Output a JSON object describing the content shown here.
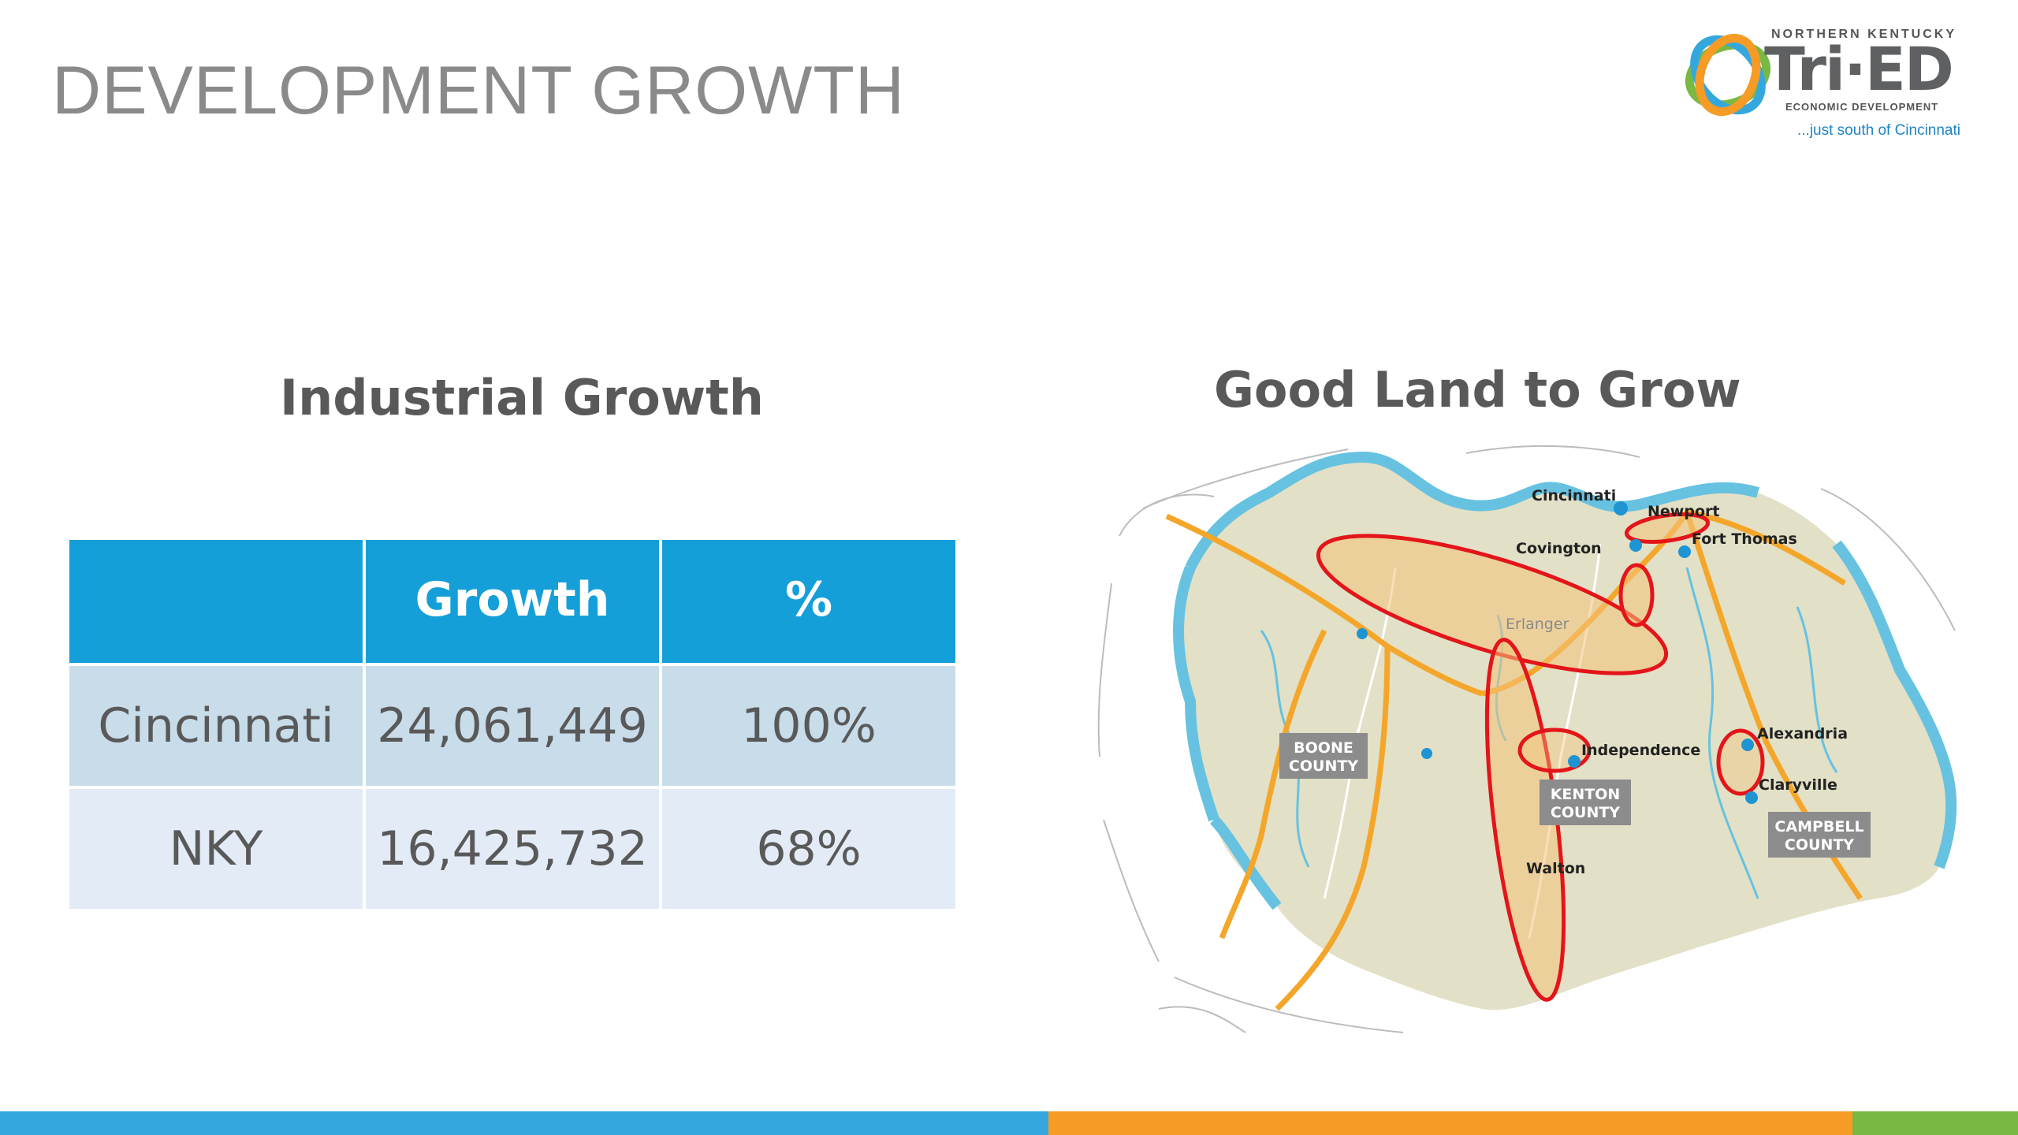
{
  "slide": {
    "title": "DEVELOPMENT GROWTH"
  },
  "logo": {
    "top_line": "NORTHERN KENTUCKY",
    "name": "Tri·ED",
    "subtitle": "ECONOMIC DEVELOPMENT",
    "tagline": "...just south of Cincinnati",
    "icon": "tri-ring-logo-icon"
  },
  "industrial_growth": {
    "heading": "Industrial Growth",
    "columns": [
      "",
      "Growth",
      "%"
    ],
    "rows": [
      {
        "region": "Cincinnati",
        "growth": "24,061,449",
        "percent": "100%"
      },
      {
        "region": "NKY",
        "growth": "16,425,732",
        "percent": "68%"
      }
    ]
  },
  "land_map": {
    "heading": "Good Land to Grow",
    "cities": {
      "cincinnati": "Cincinnati",
      "newport": "Newport",
      "covington": "Covington",
      "fort_thomas": "Fort Thomas",
      "erlanger": "Erlanger",
      "independence": "Independence",
      "alexandria": "Alexandria",
      "claryville": "Claryville",
      "walton": "Walton"
    },
    "counties": {
      "boone_1": "BOONE",
      "boone_2": "COUNTY",
      "kenton_1": "KENTON",
      "kenton_2": "COUNTY",
      "campbell_1": "CAMPBELL",
      "campbell_2": "COUNTY"
    },
    "colors": {
      "river": "#66c2e0",
      "land": "#e2e0c6",
      "highway": "#f4a62a",
      "highlight": "#e3151a"
    }
  },
  "footer": {
    "colors": [
      "#34a8de",
      "#f59b26",
      "#79b843"
    ]
  }
}
